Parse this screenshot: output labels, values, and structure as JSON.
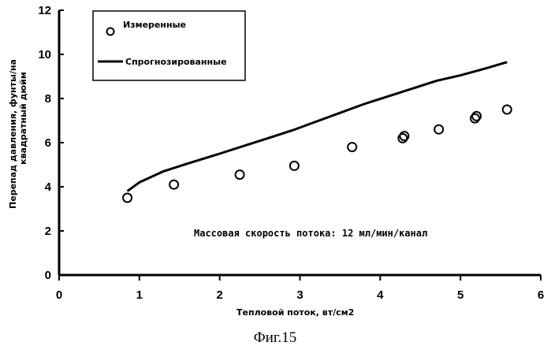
{
  "figure_caption": "Фиг.15",
  "chart_data": {
    "type": "line",
    "xlabel": "Тепловой поток, вт/см2",
    "ylabel_lines": [
      "Перепад давления, фунты/на",
      "квадратный дюйм"
    ],
    "xlim": [
      0,
      6
    ],
    "ylim": [
      0,
      12
    ],
    "xticks": [
      "0",
      "1",
      "2",
      "3",
      "4",
      "5",
      "6"
    ],
    "yticks": [
      "0",
      "2",
      "4",
      "6",
      "8",
      "10",
      "12"
    ],
    "grid": false,
    "legend_position": "top-left",
    "annotation": "Массовая скорость потока: 12 мл/мин/канал",
    "series": [
      {
        "name": "Измеренные",
        "kind": "scatter",
        "marker": "circle-open",
        "x": [
          0.85,
          1.43,
          2.25,
          2.93,
          3.65,
          4.28,
          4.3,
          4.73,
          5.18,
          5.2,
          5.58
        ],
        "y": [
          3.5,
          4.1,
          4.55,
          4.95,
          5.8,
          6.2,
          6.3,
          6.6,
          7.1,
          7.2,
          7.5
        ]
      },
      {
        "name": "Спрогнозированные",
        "kind": "line",
        "color": "#000000",
        "x": [
          0.85,
          1.0,
          1.3,
          1.6,
          2.0,
          2.3,
          2.6,
          2.9,
          3.2,
          3.5,
          3.8,
          4.1,
          4.4,
          4.7,
          5.0,
          5.3,
          5.58
        ],
        "y": [
          3.8,
          4.2,
          4.7,
          5.05,
          5.5,
          5.85,
          6.2,
          6.55,
          6.95,
          7.35,
          7.75,
          8.1,
          8.45,
          8.8,
          9.05,
          9.35,
          9.65
        ]
      }
    ]
  }
}
